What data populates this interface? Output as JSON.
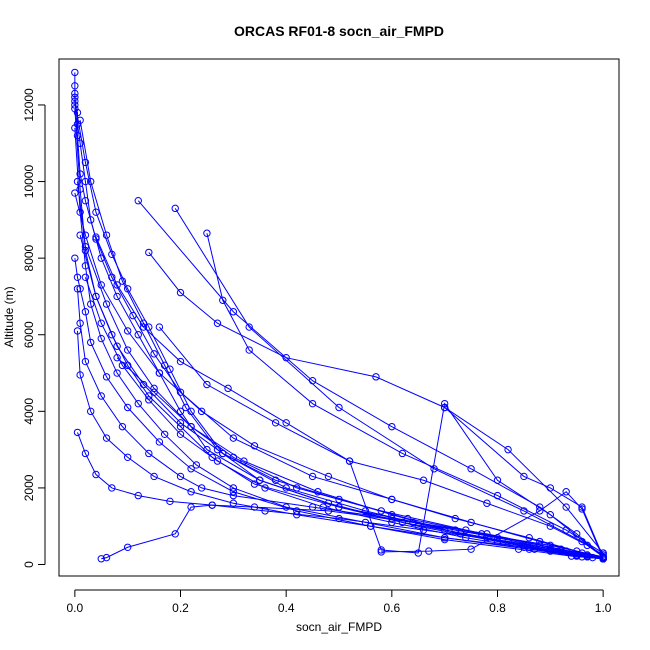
{
  "chart_data": {
    "type": "line",
    "title": "ORCAS RF01-8 socn_air_FMPD",
    "xlabel": "socn_air_FMPD",
    "ylabel": "Altitude (m)",
    "xlim": [
      -0.03,
      1.03
    ],
    "ylim": [
      -300,
      13200
    ],
    "x_ticks": [
      0.0,
      0.2,
      0.4,
      0.6,
      0.8,
      1.0
    ],
    "x_tick_labels": [
      "0.0",
      "0.2",
      "0.4",
      "0.6",
      "0.8",
      "1.0"
    ],
    "y_ticks": [
      0,
      2000,
      4000,
      6000,
      8000,
      10000,
      12000
    ],
    "y_tick_labels": [
      "0",
      "2000",
      "4000",
      "6000",
      "8000",
      "10000",
      "12000"
    ],
    "grid": false,
    "line_color": "#0000ff",
    "marker": "open-circle",
    "series": [
      {
        "x": [
          0.0,
          0.0,
          0.0,
          0.0,
          0.005,
          0.005,
          0.01,
          0.02,
          0.03,
          0.05,
          0.08,
          0.12,
          0.16,
          0.2,
          0.25,
          0.35,
          0.5,
          0.65,
          0.8,
          0.9,
          0.95,
          0.98,
          1.0
        ],
        "y": [
          12850,
          12500,
          12200,
          12000,
          11800,
          11500,
          11000,
          10000,
          9000,
          8000,
          7000,
          6000,
          5000,
          4000,
          3000,
          2200,
          1500,
          1000,
          600,
          350,
          250,
          180,
          150
        ]
      },
      {
        "x": [
          0.0,
          0.02,
          0.04,
          0.07,
          0.1,
          0.14,
          0.18,
          0.22,
          0.28,
          0.4,
          0.55,
          0.7,
          0.85,
          0.95,
          1.0
        ],
        "y": [
          12100,
          10500,
          9200,
          8100,
          7200,
          6200,
          5100,
          4000,
          2900,
          2000,
          1400,
          900,
          500,
          250,
          150
        ]
      },
      {
        "x": [
          0.01,
          0.03,
          0.06,
          0.09,
          0.13,
          0.17,
          0.21,
          0.27,
          0.35,
          0.48,
          0.62,
          0.78,
          0.9,
          0.97,
          1.0
        ],
        "y": [
          11600,
          10000,
          8600,
          7400,
          6300,
          5200,
          4100,
          3000,
          2200,
          1600,
          1100,
          700,
          400,
          220,
          150
        ]
      },
      {
        "x": [
          0.0,
          0.005,
          0.01,
          0.02,
          0.04,
          0.07,
          0.11,
          0.15,
          0.2,
          0.3,
          0.45,
          0.6,
          0.75,
          0.88,
          0.96,
          1.0
        ],
        "y": [
          12300,
          11200,
          10200,
          9500,
          8500,
          7500,
          6500,
          5500,
          4500,
          3300,
          2300,
          1700,
          1100,
          600,
          300,
          150
        ]
      },
      {
        "x": [
          0.12,
          0.3,
          0.45,
          0.6,
          0.75,
          0.88,
          0.95,
          1.0
        ],
        "y": [
          9500,
          6600,
          4800,
          3600,
          2500,
          1500,
          800,
          200
        ]
      },
      {
        "x": [
          0.19,
          0.33,
          0.5,
          0.68,
          0.85,
          0.96,
          1.0
        ],
        "y": [
          9300,
          6200,
          4100,
          2500,
          1400,
          600,
          250
        ]
      },
      {
        "x": [
          0.25,
          0.28,
          0.33,
          0.45,
          0.62,
          0.8,
          0.93,
          1.0
        ],
        "y": [
          8650,
          6900,
          5600,
          4200,
          2900,
          1800,
          900,
          300
        ]
      },
      {
        "x": [
          0.0,
          0.01,
          0.02,
          0.04,
          0.07,
          0.1,
          0.14,
          0.2,
          0.26,
          0.34,
          0.5,
          0.72,
          0.9,
          1.0
        ],
        "y": [
          11900,
          9800,
          8200,
          7000,
          6000,
          5200,
          4400,
          3600,
          2800,
          2100,
          1500,
          900,
          500,
          200
        ]
      },
      {
        "x": [
          0.14,
          0.2,
          0.27,
          0.4,
          0.57,
          0.7,
          0.82,
          0.93,
          1.0
        ],
        "y": [
          8150,
          7100,
          6300,
          5400,
          4900,
          4100,
          3000,
          1500,
          300
        ]
      },
      {
        "x": [
          0.0,
          0.01,
          0.02,
          0.03,
          0.05,
          0.08,
          0.12,
          0.17,
          0.23,
          0.3,
          0.4,
          0.55,
          0.7,
          0.86,
          0.95,
          1.0
        ],
        "y": [
          11400,
          9200,
          7800,
          6800,
          5900,
          5000,
          4200,
          3400,
          2600,
          2000,
          1500,
          1100,
          700,
          400,
          220,
          150
        ]
      },
      {
        "x": [
          0.16,
          0.25,
          0.38,
          0.52,
          0.66,
          0.78,
          0.9,
          0.97,
          1.0
        ],
        "y": [
          6200,
          4700,
          3700,
          2700,
          2200,
          1600,
          1000,
          500,
          200
        ]
      },
      {
        "x": [
          0.08,
          0.15,
          0.22,
          0.32,
          0.46,
          0.6,
          0.73,
          0.86,
          0.95,
          1.0
        ],
        "y": [
          5400,
          4500,
          3600,
          2700,
          1900,
          1300,
          800,
          450,
          230,
          150
        ]
      },
      {
        "x": [
          0.005,
          0.02,
          0.06,
          0.1,
          0.15,
          0.22,
          0.3,
          0.42,
          0.58,
          0.74,
          0.88,
          0.97,
          1.0
        ],
        "y": [
          10000,
          8300,
          6800,
          5600,
          4600,
          3600,
          2800,
          2000,
          1400,
          900,
          500,
          250,
          150
        ]
      },
      {
        "x": [
          0.0,
          0.005,
          0.01,
          0.02,
          0.03,
          0.06,
          0.1,
          0.16,
          0.22,
          0.3,
          0.42,
          0.56,
          0.7,
          0.84,
          0.94,
          1.0
        ],
        "y": [
          8000,
          7500,
          7200,
          6600,
          5800,
          4900,
          4100,
          3200,
          2500,
          1900,
          1400,
          1000,
          650,
          400,
          220,
          150
        ]
      },
      {
        "x": [
          0.005,
          0.01,
          0.02,
          0.05,
          0.09,
          0.14,
          0.2,
          0.24,
          0.3,
          0.45,
          0.6,
          0.78,
          0.92,
          1.0
        ],
        "y": [
          7200,
          6300,
          5300,
          4400,
          3600,
          2900,
          2300,
          2000,
          1800,
          1500,
          1200,
          800,
          400,
          180
        ]
      },
      {
        "x": [
          0.005,
          0.01,
          0.03,
          0.06,
          0.1,
          0.15,
          0.22,
          0.3,
          0.42,
          0.56,
          0.7,
          0.85,
          0.95,
          1.0
        ],
        "y": [
          6100,
          4950,
          4000,
          3300,
          2800,
          2300,
          1900,
          1600,
          1300,
          1000,
          700,
          450,
          250,
          150
        ]
      },
      {
        "x": [
          0.005,
          0.02,
          0.04,
          0.07,
          0.12,
          0.18,
          0.26,
          0.36,
          0.5,
          0.66,
          0.82,
          0.93,
          1.0
        ],
        "y": [
          3450,
          2900,
          2350,
          2000,
          1800,
          1650,
          1550,
          1400,
          1200,
          900,
          600,
          350,
          180
        ]
      },
      {
        "x": [
          0.05,
          0.06,
          0.1,
          0.19,
          0.22,
          0.26,
          0.34,
          0.48,
          0.64,
          0.8,
          0.92,
          1.0
        ],
        "y": [
          150,
          180,
          450,
          800,
          1500,
          1550,
          1500,
          1400,
          1100,
          700,
          350,
          150
        ]
      },
      {
        "x": [
          0.0,
          0.02,
          0.05,
          0.1,
          0.16,
          0.24,
          0.34,
          0.48,
          0.6,
          0.72,
          0.86,
          0.95,
          1.0
        ],
        "y": [
          9700,
          8600,
          7300,
          6100,
          5000,
          4000,
          3100,
          2300,
          1700,
          1200,
          700,
          350,
          150
        ]
      },
      {
        "x": [
          0.04,
          0.08,
          0.13,
          0.2,
          0.29,
          0.4,
          0.52,
          0.58,
          0.65,
          0.7,
          0.8,
          0.9,
          1.0
        ],
        "y": [
          8550,
          7300,
          6200,
          5300,
          4600,
          3700,
          2700,
          380,
          300,
          4200,
          2200,
          1300,
          200
        ]
      },
      {
        "x": [
          0.58,
          0.67,
          0.75,
          0.88,
          0.93,
          0.96,
          1.0
        ],
        "y": [
          330,
          350,
          400,
          1400,
          1900,
          1450,
          160
        ]
      },
      {
        "x": [
          0.7,
          0.85,
          0.9,
          0.96,
          1.0
        ],
        "y": [
          4100,
          2300,
          2000,
          1500,
          200
        ]
      },
      {
        "x": [
          0.01,
          0.04,
          0.08,
          0.13,
          0.2,
          0.28,
          0.38,
          0.5,
          0.63,
          0.77,
          0.9,
          0.97,
          1.0
        ],
        "y": [
          8600,
          7000,
          5700,
          4700,
          3700,
          2900,
          2200,
          1700,
          1200,
          800,
          400,
          200,
          150
        ]
      },
      {
        "x": [
          0.02,
          0.05,
          0.09,
          0.14,
          0.2,
          0.27,
          0.36,
          0.47,
          0.6,
          0.74,
          0.87,
          0.96,
          1.0
        ],
        "y": [
          7500,
          6300,
          5200,
          4300,
          3400,
          2700,
          2000,
          1500,
          1100,
          700,
          400,
          200,
          150
        ]
      }
    ]
  }
}
